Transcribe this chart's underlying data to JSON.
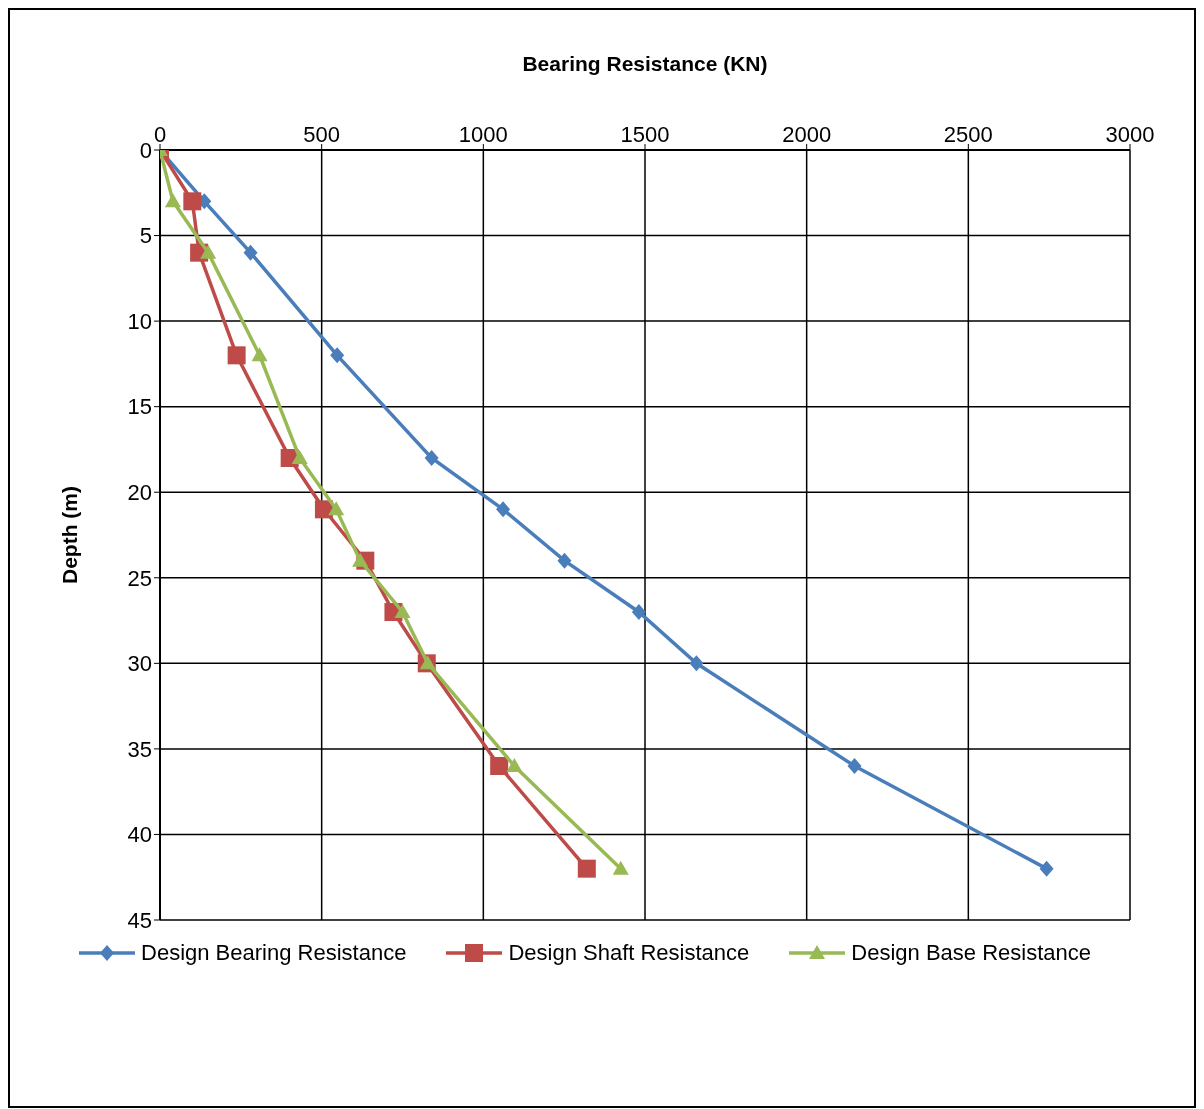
{
  "chart_data": {
    "type": "line",
    "xlabel": "Bearing Resistance (KN)",
    "ylabel": "Depth (m)",
    "xlim": [
      0,
      3000
    ],
    "xticks": [
      0,
      500,
      1000,
      1500,
      2000,
      2500,
      3000
    ],
    "ylim": [
      45,
      0
    ],
    "yticks": [
      0,
      5,
      10,
      15,
      20,
      25,
      30,
      35,
      40,
      45
    ],
    "grid": true,
    "legend": "bottom",
    "series": [
      {
        "name": "Design Bearing Resistance",
        "color": "#4a7ebb",
        "marker": "diamond",
        "x": [
          0,
          137,
          280,
          548,
          840,
          1061,
          1251,
          1481,
          1659,
          2148,
          2742
        ],
        "values": [
          0,
          3,
          6,
          12,
          18,
          21,
          24,
          27,
          30,
          36,
          42
        ]
      },
      {
        "name": "Design Shaft Resistance",
        "color": "#be4b48",
        "marker": "square",
        "x": [
          0,
          100,
          121,
          237,
          401,
          507,
          635,
          722,
          825,
          1049,
          1320
        ],
        "values": [
          0,
          3,
          6,
          12,
          18,
          21,
          24,
          27,
          30,
          36,
          42
        ]
      },
      {
        "name": "Design Base Resistance",
        "color": "#98b954",
        "marker": "triangle",
        "x": [
          0,
          40,
          149,
          308,
          432,
          545,
          619,
          750,
          828,
          1096,
          1425
        ],
        "values": [
          0,
          3,
          6,
          12,
          18,
          21,
          24,
          27,
          30,
          36,
          42
        ]
      }
    ]
  }
}
